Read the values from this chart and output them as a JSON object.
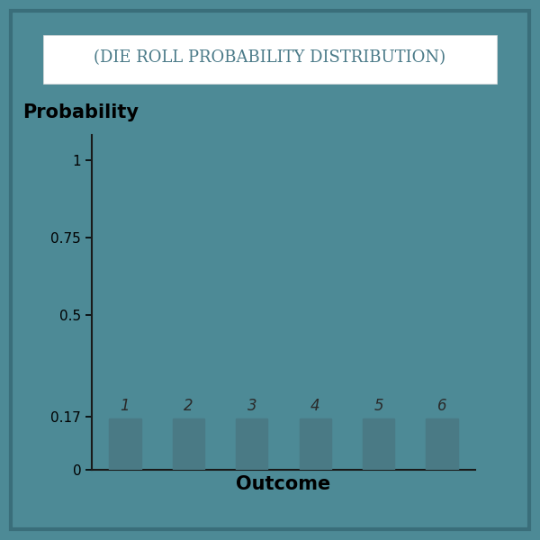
{
  "title": "(DIE ROLL PROBABILITY DISTRIBUTION)",
  "categories": [
    1,
    2,
    3,
    4,
    5,
    6
  ],
  "values": [
    0.1667,
    0.1667,
    0.1667,
    0.1667,
    0.1667,
    0.1667
  ],
  "bar_color": "#4a7a85",
  "background_color": "#4d8a96",
  "title_bg_color": "#ffffff",
  "title_color": "#4a7a88",
  "title_fontsize": 13,
  "xlabel": "Outcome",
  "ylabel": "Probability",
  "xlabel_fontsize": 15,
  "ylabel_fontsize": 15,
  "yticks": [
    0,
    0.17,
    0.5,
    0.75,
    1
  ],
  "ytick_labels": [
    "0",
    "0.17",
    "0.5",
    "0.75",
    "1"
  ],
  "ylim": [
    0,
    1.08
  ],
  "bar_width": 0.5,
  "bar_label_fontsize": 12,
  "axes_color": "#1a1a1a",
  "tick_color": "#000000",
  "figure_bg_color": "#4d8a96",
  "border_color": "#3a6e7a",
  "border_width": 3
}
